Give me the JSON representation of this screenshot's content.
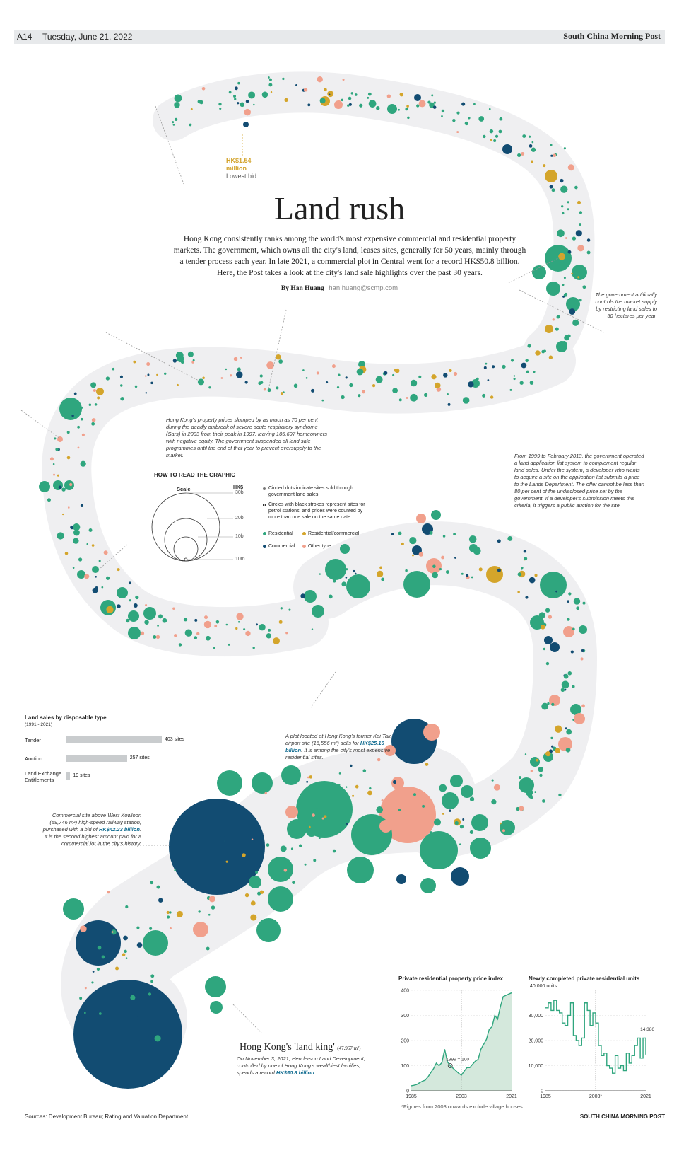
{
  "header": {
    "page_number": "A14",
    "date": "Tuesday, June 21, 2022",
    "masthead": "South China Morning Post"
  },
  "title": "Land rush",
  "intro": "Hong Kong consistently ranks among the world's most expensive commercial and residential property markets. The government, which owns all the city's land, leases sites, generally for 50 years, mainly through a tender process each year. In late 2021, a commercial plot in Central went for a record HK$50.8 billion. Here, the Post takes a look at the city's land sale highlights over the past 30 years.",
  "byline": {
    "author": "By Han Huang",
    "email": "han.huang@scmp.com"
  },
  "colors": {
    "residential": "#2fa67e",
    "residential_commercial": "#d4a52b",
    "commercial": "#124c72",
    "other": "#f1a08c",
    "band": "#efeff1",
    "bar": "#c9ccce",
    "chart_line": "#2fa67e",
    "chart_fill": "#d4e8dc"
  },
  "annotations": {
    "lowest_bid_value": "HK$1.54 million",
    "lowest_bid_label": "Lowest bid",
    "supply_note": "The government artificially controls the market supply by restricting land sales to 50 hectares per year.",
    "sars_note": "Hong Kong's property prices slumped by as much as 70 per cent during the deadly outbreak of severe acute respiratory syndrome (Sars) in 2003 from their peak in 1997, leaving 105,697 homeowners with negative equity. The government suspended all land sale programmes until the end of that year to prevent oversupply to the market.",
    "application_note": "From 1999 to February 2013, the government operated a land application list system to complement regular land sales. Under the system, a developer who wants to acquire a site on the application list submits a price to the Lands Department. The offer cannot be less than 80 per cent of the undisclosed price set by the government. If a developer's submission meets this criteria, it triggers a public auction for the site.",
    "kaitak_note_pre": "A plot located at Hong Kong's former Kai Tak airport site (16,556 m²) sells for",
    "kaitak_note_value": "HK$25.16 billion",
    "kaitak_note_post": ". It is among the city's most expensive residential sites.",
    "westkowloon_note_pre": "Commercial site above West Kowloon (59,746 m²) high-speed railway station, purchased with a bid of",
    "westkowloon_note_value": "HK$42.23 billion",
    "westkowloon_note_post": ". It is the second highest amount paid for a commercial lot in the city's history.",
    "king_title": "Hong Kong's 'land king'",
    "king_area": "(47,967 m²)",
    "king_note_pre": "On November 3, 2021, Henderson Land Development, controlled by one of Hong Kong's wealthiest families, spends a record",
    "king_note_value": "HK$50.8 billion",
    "king_note_post": "."
  },
  "how_to_read": {
    "title": "HOW TO READ THE GRAPHIC",
    "scale_label": "Scale",
    "unit_label": "HK$",
    "scale_ticks": [
      "30b",
      "20b",
      "10b",
      "10m"
    ],
    "legend_circled": "Circled dots indicate sites sold through government land sales",
    "legend_stroked": "Circles with black strokes represent sites for petrol stations, and prices were counted by more than one sale on the same date",
    "legend_residential": "Residential",
    "legend_res_com": "Residential/commercial",
    "legend_commercial": "Commercial",
    "legend_other": "Other type"
  },
  "disposable": {
    "title": "Land sales by disposable type",
    "subtitle": "(1991 - 2021)",
    "rows": [
      {
        "label": "Tender",
        "value": 403,
        "value_label": "403 sites"
      },
      {
        "label": "Auction",
        "value": 257,
        "value_label": "257 sites"
      },
      {
        "label": "Land Exchange Entitlements",
        "value": 19,
        "value_label": "19 sites"
      }
    ]
  },
  "chart_data": [
    {
      "type": "area",
      "title": "Private residential property price index",
      "x": [
        1985,
        1986,
        1987,
        1988,
        1989,
        1990,
        1991,
        1992,
        1993,
        1994,
        1995,
        1996,
        1997,
        1998,
        1999,
        2000,
        2001,
        2002,
        2003,
        2004,
        2005,
        2006,
        2007,
        2008,
        2009,
        2010,
        2011,
        2012,
        2013,
        2014,
        2015,
        2016,
        2017,
        2018,
        2019,
        2020,
        2021
      ],
      "values": [
        20,
        22,
        25,
        32,
        38,
        42,
        55,
        72,
        88,
        110,
        100,
        112,
        165,
        115,
        100,
        90,
        80,
        70,
        62,
        78,
        92,
        92,
        105,
        118,
        125,
        165,
        185,
        205,
        245,
        255,
        300,
        285,
        335,
        375,
        380,
        385,
        390
      ],
      "xticks": [
        "1985",
        "2003",
        "2021"
      ],
      "yticks": [
        0,
        100,
        200,
        300,
        400
      ],
      "ylim": [
        0,
        400
      ],
      "annotation": "1999 = 100",
      "footnote": "*Figures from 2003 onwards exclude village houses"
    },
    {
      "type": "line",
      "title": "Newly completed private residential units",
      "unit_label": "40,000 units",
      "x": [
        1985,
        1986,
        1987,
        1988,
        1989,
        1990,
        1991,
        1992,
        1993,
        1994,
        1995,
        1996,
        1997,
        1998,
        1999,
        2000,
        2001,
        2002,
        2003,
        2004,
        2005,
        2006,
        2007,
        2008,
        2009,
        2010,
        2011,
        2012,
        2013,
        2014,
        2015,
        2016,
        2017,
        2018,
        2019,
        2020,
        2021
      ],
      "values": [
        33000,
        35000,
        32000,
        36000,
        32000,
        31000,
        27000,
        26000,
        30000,
        35000,
        22000,
        20000,
        18000,
        21000,
        35000,
        32000,
        26000,
        31000,
        27000,
        18000,
        14000,
        15000,
        10000,
        9000,
        7000,
        14000,
        9000,
        10000,
        8000,
        15000,
        11000,
        14000,
        18000,
        21000,
        13000,
        21000,
        14386
      ],
      "xticks": [
        "1985",
        "2003*",
        "2021"
      ],
      "yticks": [
        "0",
        "10,000",
        "20,000",
        "30,000"
      ],
      "ylim": [
        0,
        40000
      ],
      "end_label": "14,386"
    }
  ],
  "footer": {
    "sources": "Sources: Development Bureau; Rating and Valuation Department",
    "brand": "SOUTH CHINA MORNING POST"
  }
}
